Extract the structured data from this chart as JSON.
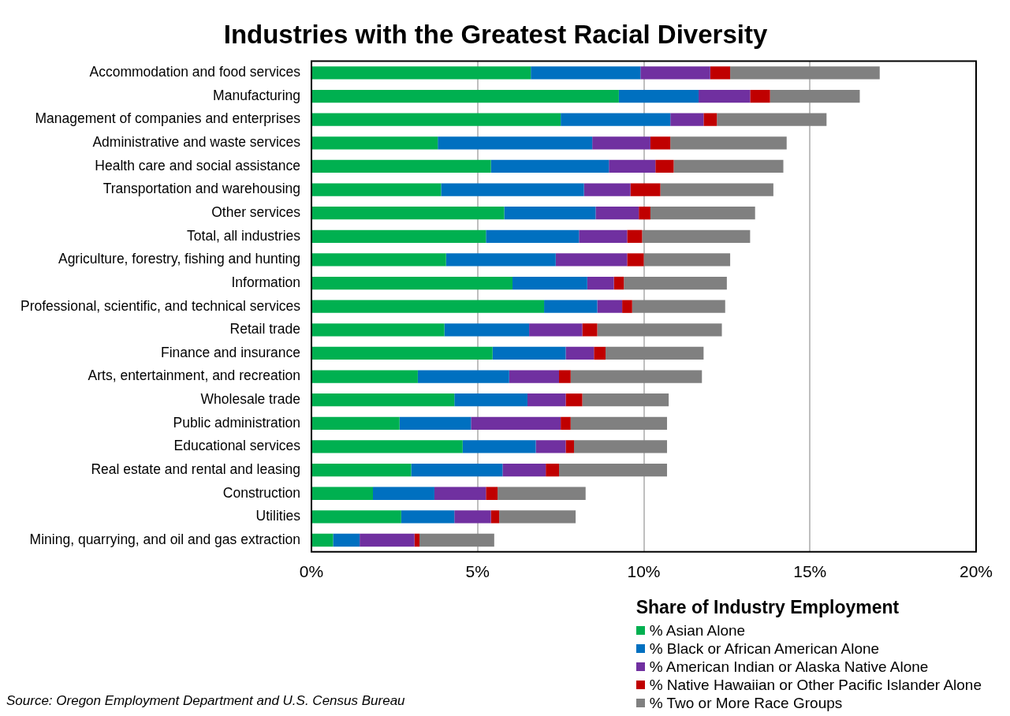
{
  "chart_data": {
    "type": "bar",
    "orientation": "horizontal",
    "stacked": true,
    "title": "Industries with the Greatest Racial Diversity",
    "legend_title": "Share of Industry Employment",
    "legend": "bottom right",
    "grid": "x",
    "categories": [
      "Accommodation and food services",
      "Manufacturing",
      "Management of companies and enterprises",
      "Administrative and waste services",
      "Health care and social assistance",
      "Transportation and warehousing",
      "Other services",
      "Total, all industries",
      "Agriculture, forestry, fishing and hunting",
      "Information",
      "Professional, scientific, and technical services",
      "Retail trade",
      "Finance and insurance",
      "Arts, entertainment, and recreation",
      "Wholesale trade",
      "Public administration",
      "Educational services",
      "Real estate and rental and leasing",
      "Construction",
      "Utilities",
      "Mining, quarrying, and oil and gas extraction"
    ],
    "series": [
      {
        "name": "% Asian Alone",
        "color": "#00b050",
        "values": [
          6.6,
          9.25,
          7.5,
          3.8,
          5.4,
          3.9,
          5.8,
          5.25,
          4.05,
          6.05,
          7.0,
          4.0,
          5.45,
          3.2,
          4.3,
          2.65,
          4.55,
          3.0,
          1.85,
          2.7,
          0.65
        ]
      },
      {
        "name": "% Black or African American Alone",
        "color": "#0070c0",
        "values": [
          3.3,
          2.4,
          3.3,
          4.65,
          3.55,
          4.3,
          2.75,
          2.8,
          3.3,
          2.25,
          1.6,
          2.55,
          2.2,
          2.75,
          2.2,
          2.15,
          2.2,
          2.75,
          1.85,
          1.6,
          0.8
        ]
      },
      {
        "name": "% American Indian or Alaska Native Alone",
        "color": "#7030a0",
        "values": [
          2.1,
          1.55,
          1.0,
          1.75,
          1.4,
          1.4,
          1.3,
          1.45,
          2.15,
          0.8,
          0.75,
          1.6,
          0.85,
          1.5,
          1.15,
          2.7,
          0.9,
          1.3,
          1.55,
          1.1,
          1.65
        ]
      },
      {
        "name": "% Native Hawaiian or Other Pacific Islander Alone",
        "color": "#c00000",
        "values": [
          0.6,
          0.6,
          0.4,
          0.6,
          0.55,
          0.9,
          0.35,
          0.45,
          0.5,
          0.3,
          0.3,
          0.45,
          0.35,
          0.35,
          0.5,
          0.3,
          0.25,
          0.4,
          0.35,
          0.25,
          0.15
        ]
      },
      {
        "name": "% Two or More Race Groups",
        "color": "#808080",
        "values": [
          4.5,
          2.7,
          3.3,
          3.5,
          3.3,
          3.4,
          3.15,
          3.25,
          2.6,
          3.1,
          2.8,
          3.75,
          2.95,
          3.95,
          2.6,
          2.9,
          2.8,
          3.25,
          2.65,
          2.3,
          2.25
        ]
      }
    ],
    "xlim": [
      0,
      20
    ],
    "xticks": [
      {
        "value": 0,
        "label": "0%"
      },
      {
        "value": 5,
        "label": "5%"
      },
      {
        "value": 10,
        "label": "10%"
      },
      {
        "value": 15,
        "label": "15%"
      },
      {
        "value": 20,
        "label": "20%"
      }
    ],
    "annotations": [
      "Source: Oregon Employment Department and U.S. Census Bureau"
    ]
  }
}
